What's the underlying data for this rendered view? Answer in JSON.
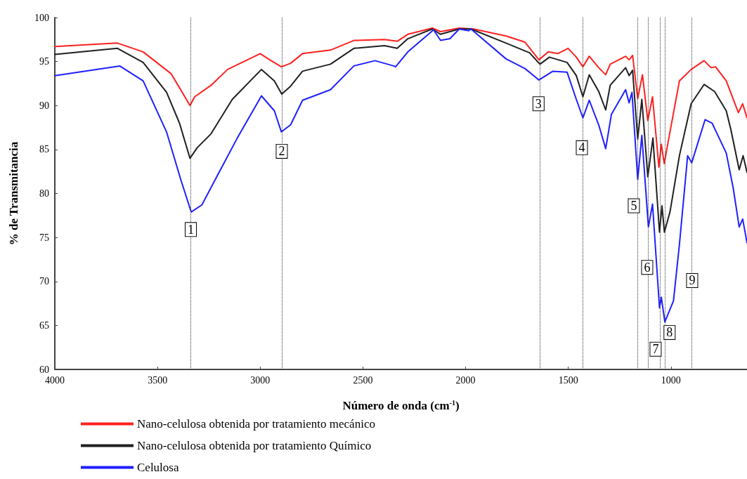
{
  "chart_data": {
    "type": "line",
    "xlabel": "Número de onda (cm$^{-1}$)",
    "ylabel": "% de Transmitancia",
    "xlim": [
      4000,
      630
    ],
    "xticks": [
      4000,
      3500,
      3000,
      2500,
      2000,
      1500,
      1000
    ],
    "ylim": [
      60,
      100
    ],
    "yticks": [
      60,
      65,
      70,
      75,
      80,
      85,
      90,
      95,
      100
    ],
    "grid": false,
    "legend": "bottom",
    "marker": "none",
    "line_style": "solid",
    "series": [
      {
        "name": "Nano-celulosa obtenida por tratamiento mecánico",
        "color": "#ff2020",
        "x": [
          4000,
          3695,
          3570,
          3433,
          3342,
          3319,
          3239,
          3159,
          3000,
          2954,
          2897,
          2852,
          2794,
          2658,
          2544,
          2395,
          2333,
          2281,
          2162,
          2122,
          2031,
          1962,
          1803,
          1711,
          1643,
          1597,
          1552,
          1501,
          1461,
          1429,
          1398,
          1352,
          1318,
          1296,
          1221,
          1204,
          1187,
          1162,
          1139,
          1113,
          1090,
          1059,
          1047,
          1033,
          1016,
          959,
          902,
          839,
          805,
          783,
          731,
          672,
          651,
          630
        ],
        "values": [
          96.7,
          97.1,
          96.1,
          93.6,
          90.0,
          91.0,
          92.3,
          94.1,
          95.9,
          95.2,
          94.4,
          94.8,
          95.9,
          96.3,
          97.4,
          97.5,
          97.3,
          98.1,
          98.8,
          98.4,
          98.8,
          98.7,
          97.9,
          97.2,
          95.2,
          96.1,
          95.9,
          96.5,
          95.5,
          94.4,
          95.6,
          94.3,
          93.5,
          94.7,
          95.6,
          95.2,
          95.7,
          90.8,
          93.5,
          88.3,
          91.0,
          83.0,
          85.6,
          83.4,
          85.6,
          92.8,
          94.1,
          95.1,
          94.3,
          94.4,
          92.8,
          89.2,
          90.2,
          88.6
        ]
      },
      {
        "name": "Nano-celulosa obtenida por tratamiento Químico",
        "color": "#202020",
        "x": [
          4000,
          3695,
          3570,
          3456,
          3393,
          3342,
          3307,
          3239,
          3136,
          2994,
          2931,
          2895,
          2852,
          2794,
          2658,
          2544,
          2395,
          2333,
          2281,
          2162,
          2122,
          2031,
          1974,
          1803,
          1689,
          1638,
          1592,
          1506,
          1461,
          1429,
          1398,
          1352,
          1318,
          1296,
          1221,
          1204,
          1187,
          1162,
          1142,
          1113,
          1088,
          1056,
          1044,
          1032,
          1005,
          959,
          902,
          839,
          788,
          731,
          708,
          668,
          649,
          630
        ],
        "values": [
          95.8,
          96.5,
          94.9,
          91.5,
          88.0,
          84.0,
          85.2,
          86.8,
          90.7,
          94.1,
          92.8,
          91.3,
          92.2,
          93.9,
          94.7,
          96.5,
          96.8,
          96.5,
          97.6,
          98.7,
          98.1,
          98.7,
          98.7,
          97.1,
          96.0,
          94.7,
          95.5,
          94.9,
          93.4,
          91.0,
          93.5,
          91.6,
          89.5,
          92.3,
          94.3,
          93.4,
          94.0,
          86.2,
          90.7,
          81.9,
          86.3,
          75.6,
          78.6,
          75.6,
          77.9,
          84.3,
          90.2,
          92.4,
          91.6,
          89.4,
          87.2,
          82.7,
          84.3,
          82.4
        ]
      },
      {
        "name": "Celulosa",
        "color": "#2020ff",
        "x": [
          4000,
          3684,
          3570,
          3456,
          3387,
          3336,
          3284,
          3205,
          3114,
          2994,
          2931,
          2897,
          2852,
          2794,
          2658,
          2544,
          2441,
          2350,
          2341,
          2281,
          2156,
          2122,
          2076,
          2031,
          1985,
          1974,
          1803,
          1711,
          1643,
          1575,
          1506,
          1461,
          1429,
          1398,
          1352,
          1318,
          1290,
          1221,
          1204,
          1190,
          1162,
          1142,
          1110,
          1090,
          1056,
          1047,
          1030,
          988,
          959,
          919,
          899,
          834,
          800,
          731,
          697,
          668,
          651,
          630
        ],
        "values": [
          93.4,
          94.5,
          92.8,
          87.0,
          81.6,
          77.9,
          78.7,
          82.2,
          86.2,
          91.1,
          89.4,
          87.0,
          87.8,
          90.6,
          91.8,
          94.5,
          95.1,
          94.5,
          94.4,
          96.1,
          98.6,
          97.4,
          97.6,
          98.7,
          98.5,
          98.7,
          95.3,
          94.2,
          92.9,
          93.9,
          93.8,
          90.7,
          88.6,
          90.6,
          87.8,
          85.1,
          89.0,
          91.8,
          90.3,
          91.5,
          81.6,
          86.6,
          76.2,
          78.8,
          67.0,
          68.2,
          65.4,
          67.8,
          74.2,
          84.3,
          83.5,
          88.4,
          88.0,
          84.6,
          80.6,
          76.2,
          77.1,
          74.4
        ]
      }
    ],
    "ref_lines": [
      {
        "axis": "x",
        "value": 3338
      },
      {
        "axis": "x",
        "value": 2895
      },
      {
        "axis": "x",
        "value": 1638
      },
      {
        "axis": "x",
        "value": 1429
      },
      {
        "axis": "x",
        "value": 1162
      },
      {
        "axis": "x",
        "value": 1113
      },
      {
        "axis": "x",
        "value": 1055
      },
      {
        "axis": "x",
        "value": 1029
      },
      {
        "axis": "x",
        "value": 899
      }
    ],
    "annotations": [
      {
        "text": "1",
        "x": 3338,
        "y": 75.9
      },
      {
        "text": "2",
        "x": 2895,
        "y": 84.8
      },
      {
        "text": "3",
        "x": 1645,
        "y": 90.2
      },
      {
        "text": "4",
        "x": 1434,
        "y": 85.2
      },
      {
        "text": "5",
        "x": 1181,
        "y": 78.6
      },
      {
        "text": "6",
        "x": 1116,
        "y": 71.6
      },
      {
        "text": "7",
        "x": 1075,
        "y": 62.3
      },
      {
        "text": "8",
        "x": 1007,
        "y": 64.2
      },
      {
        "text": "9",
        "x": 897,
        "y": 70.1
      }
    ]
  }
}
